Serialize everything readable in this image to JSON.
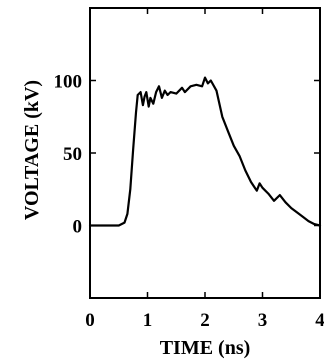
{
  "chart_data": {
    "type": "line",
    "title": "",
    "xlabel": "TIME (ns)",
    "ylabel": "VOLTAGE (kV)",
    "xlim": [
      0,
      4
    ],
    "ylim": [
      -50,
      150
    ],
    "xticks": [
      0,
      1,
      2,
      3,
      4
    ],
    "yticks": [
      0,
      50,
      100
    ],
    "grid": false,
    "series": [
      {
        "color": "#000000",
        "x": [
          0,
          0.25,
          0.5,
          0.6,
          0.65,
          0.7,
          0.75,
          0.8,
          0.83,
          0.88,
          0.92,
          0.95,
          0.98,
          1.02,
          1.05,
          1.1,
          1.15,
          1.2,
          1.25,
          1.3,
          1.35,
          1.4,
          1.5,
          1.6,
          1.65,
          1.75,
          1.85,
          1.95,
          2.0,
          2.05,
          2.1,
          2.2,
          2.3,
          2.4,
          2.5,
          2.6,
          2.7,
          2.8,
          2.9,
          2.95,
          3.0,
          3.1,
          3.2,
          3.3,
          3.4,
          3.5,
          3.6,
          3.7,
          3.8,
          3.9,
          4.0
        ],
        "y": [
          0,
          0,
          0,
          2,
          8,
          25,
          52,
          78,
          90,
          92,
          83,
          89,
          92,
          82,
          88,
          84,
          92,
          96,
          88,
          93,
          90,
          92,
          91,
          95,
          92,
          96,
          97,
          96,
          102,
          98,
          100,
          93,
          75,
          65,
          55,
          48,
          38,
          30,
          24,
          29,
          26,
          22,
          17,
          21,
          16,
          12,
          9,
          6,
          3,
          1,
          0
        ]
      }
    ]
  }
}
